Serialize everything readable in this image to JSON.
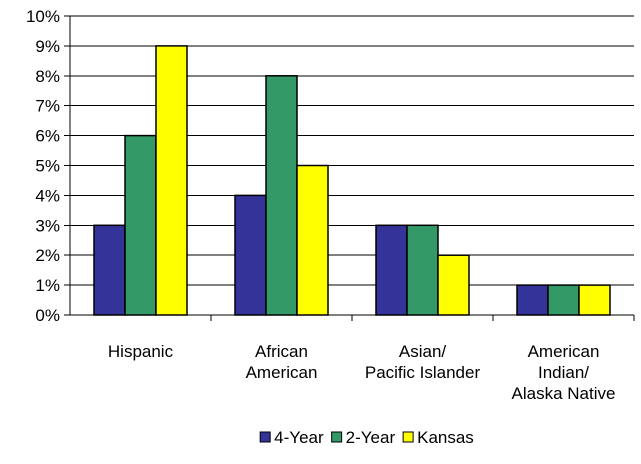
{
  "chart_data": {
    "type": "bar",
    "title": "",
    "xlabel": "",
    "ylabel": "",
    "categories": [
      [
        "Hispanic"
      ],
      [
        "African",
        "American"
      ],
      [
        "Asian/",
        "Pacific Islander"
      ],
      [
        "American",
        "Indian/",
        "Alaska Native"
      ]
    ],
    "series": [
      {
        "name": "4-Year",
        "color": "#333399",
        "values": [
          3,
          4,
          3,
          1
        ]
      },
      {
        "name": "2-Year",
        "color": "#339966",
        "values": [
          6,
          8,
          3,
          1
        ]
      },
      {
        "name": "Kansas",
        "color": "#FFFF00",
        "values": [
          9,
          5,
          2,
          1
        ]
      }
    ],
    "ylim": [
      0,
      10
    ],
    "yticks": [
      "0%",
      "1%",
      "2%",
      "3%",
      "4%",
      "5%",
      "6%",
      "7%",
      "8%",
      "9%",
      "10%"
    ],
    "y_unit": "%",
    "grid": true,
    "legend_position": "bottom"
  }
}
